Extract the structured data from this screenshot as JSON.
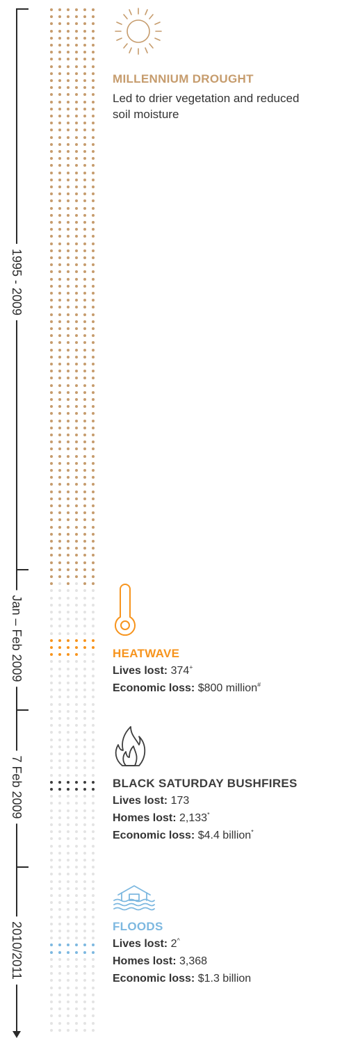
{
  "timeline": {
    "periods": [
      {
        "label": "1995 - 2009"
      },
      {
        "label": "Jan – Feb 2009"
      },
      {
        "label": "7 Feb 2009"
      },
      {
        "label": "2010/2011"
      }
    ]
  },
  "colors": {
    "drought": "#c69c6d",
    "heatwave": "#f7941d",
    "bushfires": "#3d3d3d",
    "floods": "#7db8e0",
    "inactive": "#e3e3e3",
    "text": "#333333",
    "line": "#2a2a2a"
  },
  "events": {
    "drought": {
      "icon": "sun-icon",
      "title": "MILLENNIUM DROUGHT",
      "description": "Led to drier vegetation and reduced soil moisture"
    },
    "heatwave": {
      "icon": "thermometer-icon",
      "title": "HEATWAVE",
      "lives_label": "Lives lost:",
      "lives_value": "374",
      "lives_note": "+",
      "econ_label": "Economic loss:",
      "econ_value": "$800 million",
      "econ_note": "#"
    },
    "bushfires": {
      "icon": "flame-icon",
      "title": "BLACK SATURDAY BUSHFIRES",
      "lives_label": "Lives lost:",
      "lives_value": "173",
      "homes_label": "Homes lost:",
      "homes_value": "2,133",
      "homes_note": "*",
      "econ_label": "Economic loss:",
      "econ_value": "$4.4 billion",
      "econ_note": "*"
    },
    "floods": {
      "icon": "flooded-house-icon",
      "title": "FLOODS",
      "lives_label": "Lives lost:",
      "lives_value": "2",
      "lives_note": "^",
      "homes_label": "Homes lost:",
      "homes_value": "3,368",
      "econ_label": "Economic loss:",
      "econ_value": "$1.3 billion"
    }
  }
}
